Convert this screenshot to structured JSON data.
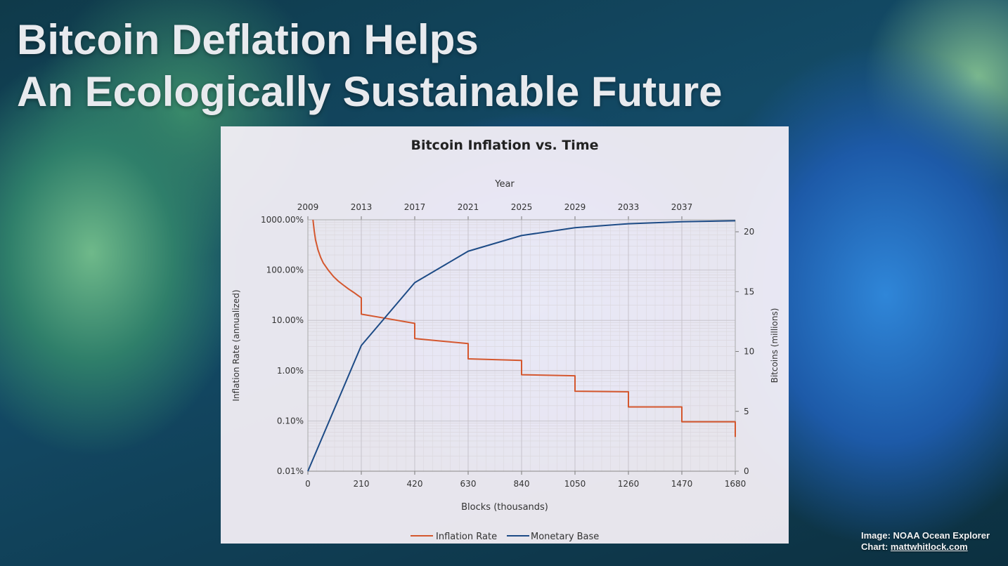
{
  "slide": {
    "title_line1": "Bitcoin Deflation Helps",
    "title_line2": "An Ecologically Sustainable Future"
  },
  "credits": {
    "image_label": "Image:",
    "image_source": "NOAA Ocean Explorer",
    "chart_label": "Chart:",
    "chart_source": "mattwhitlock.com"
  },
  "colors": {
    "inflation": "#d4572e",
    "monetary_base": "#1d4b86"
  },
  "chart_data": {
    "type": "line",
    "title": "Bitcoin Inflation vs. Time",
    "xlabel": "Blocks (thousands)",
    "x2label": "Year",
    "ylabel": "Inflation Rate (annualized)",
    "y2label": "Bitcoins (millions)",
    "xlim": [
      0,
      1680
    ],
    "x_ticks": [
      "0",
      "210",
      "420",
      "630",
      "840",
      "1050",
      "1260",
      "1470",
      "1680"
    ],
    "x2_ticks": [
      "2009",
      "2013",
      "2017",
      "2021",
      "2025",
      "2029",
      "2033",
      "2037"
    ],
    "y_scale": "log",
    "ylim": [
      0.01,
      1000
    ],
    "y_ticks": [
      "0.01%",
      "0.10%",
      "1.00%",
      "10.00%",
      "100.00%",
      "1000.00%"
    ],
    "y2lim": [
      0,
      21
    ],
    "y2_ticks": [
      "0",
      "5",
      "10",
      "15",
      "20"
    ],
    "grid": true,
    "legend_position": "bottom",
    "series": [
      {
        "name": "Inflation Rate",
        "axis": "left",
        "points": [
          [
            20,
            1000
          ],
          [
            25,
            600
          ],
          [
            30,
            400
          ],
          [
            40,
            250
          ],
          [
            50,
            180
          ],
          [
            60,
            140
          ],
          [
            80,
            100
          ],
          [
            100,
            75
          ],
          [
            120,
            60
          ],
          [
            140,
            50
          ],
          [
            160,
            42
          ],
          [
            180,
            36
          ],
          [
            210,
            28
          ],
          [
            210,
            13.3
          ],
          [
            300,
            11.1
          ],
          [
            420,
            8.7
          ],
          [
            420,
            4.35
          ],
          [
            630,
            3.45
          ],
          [
            630,
            1.72
          ],
          [
            840,
            1.6
          ],
          [
            840,
            0.83
          ],
          [
            1050,
            0.79
          ],
          [
            1050,
            0.39
          ],
          [
            1260,
            0.38
          ],
          [
            1260,
            0.19
          ],
          [
            1470,
            0.19
          ],
          [
            1470,
            0.096
          ],
          [
            1680,
            0.096
          ],
          [
            1680,
            0.048
          ]
        ]
      },
      {
        "name": "Monetary Base",
        "axis": "right",
        "points": [
          [
            0,
            0
          ],
          [
            210,
            10.5
          ],
          [
            420,
            15.75
          ],
          [
            630,
            18.375
          ],
          [
            840,
            19.6875
          ],
          [
            1050,
            20.34
          ],
          [
            1260,
            20.67
          ],
          [
            1470,
            20.84
          ],
          [
            1680,
            20.92
          ]
        ]
      }
    ]
  }
}
